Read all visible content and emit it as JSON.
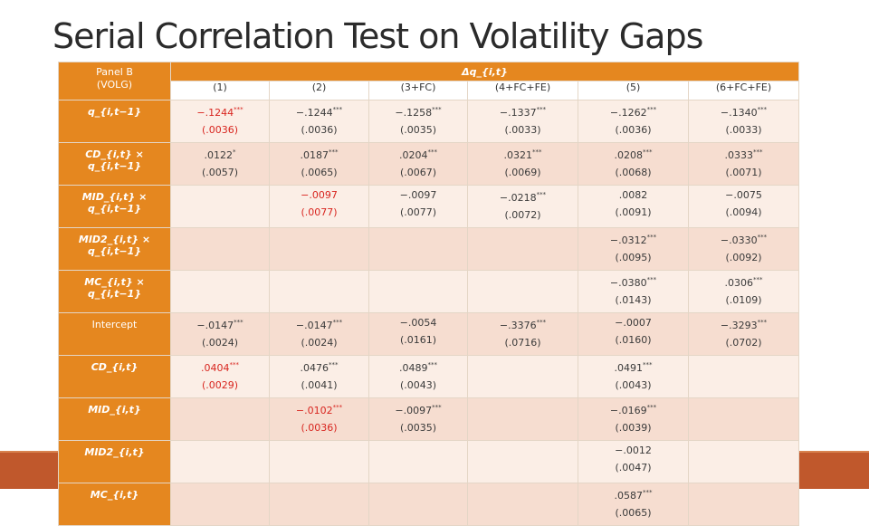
{
  "title": "Serial Correlation Test on Volatility Gaps",
  "panel_label_line1": "Panel B",
  "panel_label_line2": "(VOLG)",
  "dependent_variable": "Δq_{i,t}",
  "columns": [
    "(1)",
    "(2)",
    "(3+FC)",
    "(4+FC+FE)",
    "(5)",
    "(6+FC+FE)"
  ],
  "rows": [
    {
      "label": "q_{i,t−1}",
      "cells": [
        {
          "coef": "−.1244",
          "stars": "***",
          "se": "(.0036)",
          "red": true
        },
        {
          "coef": "−.1244",
          "stars": "***",
          "se": "(.0036)"
        },
        {
          "coef": "−.1258",
          "stars": "***",
          "se": "(.0035)"
        },
        {
          "coef": "−.1337",
          "stars": "***",
          "se": "(.0033)"
        },
        {
          "coef": "−.1262",
          "stars": "***",
          "se": "(.0036)"
        },
        {
          "coef": "−.1340",
          "stars": "***",
          "se": "(.0033)"
        }
      ]
    },
    {
      "label": "CD_{i,t} × q_{i,t−1}",
      "cells": [
        {
          "coef": ".0122",
          "stars": "*",
          "se": "(.0057)"
        },
        {
          "coef": ".0187",
          "stars": "***",
          "se": "(.0065)"
        },
        {
          "coef": ".0204",
          "stars": "***",
          "se": "(.0067)"
        },
        {
          "coef": ".0321",
          "stars": "***",
          "se": "(.0069)"
        },
        {
          "coef": ".0208",
          "stars": "***",
          "se": "(.0068)"
        },
        {
          "coef": ".0333",
          "stars": "***",
          "se": "(.0071)"
        }
      ]
    },
    {
      "label": "MID_{i,t} × q_{i,t−1}",
      "cells": [
        {
          "coef": "",
          "stars": "",
          "se": ""
        },
        {
          "coef": "−.0097",
          "stars": "",
          "se": "(.0077)",
          "red": true
        },
        {
          "coef": "−.0097",
          "stars": "",
          "se": "(.0077)"
        },
        {
          "coef": "−.0218",
          "stars": "***",
          "se": "(.0072)"
        },
        {
          "coef": ".0082",
          "stars": "",
          "se": "(.0091)"
        },
        {
          "coef": "−.0075",
          "stars": "",
          "se": "(.0094)"
        }
      ]
    },
    {
      "label": "MID2_{i,t} × q_{i,t−1}",
      "cells": [
        {
          "coef": "",
          "stars": "",
          "se": ""
        },
        {
          "coef": "",
          "stars": "",
          "se": ""
        },
        {
          "coef": "",
          "stars": "",
          "se": ""
        },
        {
          "coef": "",
          "stars": "",
          "se": ""
        },
        {
          "coef": "−.0312",
          "stars": "***",
          "se": "(.0095)"
        },
        {
          "coef": "−.0330",
          "stars": "***",
          "se": "(.0092)"
        }
      ]
    },
    {
      "label": "MC_{i,t} × q_{i,t−1}",
      "cells": [
        {
          "coef": "",
          "stars": "",
          "se": ""
        },
        {
          "coef": "",
          "stars": "",
          "se": ""
        },
        {
          "coef": "",
          "stars": "",
          "se": ""
        },
        {
          "coef": "",
          "stars": "",
          "se": ""
        },
        {
          "coef": "−.0380",
          "stars": "***",
          "se": "(.0143)"
        },
        {
          "coef": ".0306",
          "stars": "***",
          "se": "(.0109)"
        }
      ]
    },
    {
      "label": "Intercept",
      "plain": true,
      "cells": [
        {
          "coef": "−.0147",
          "stars": "***",
          "se": "(.0024)"
        },
        {
          "coef": "−.0147",
          "stars": "***",
          "se": "(.0024)"
        },
        {
          "coef": "−.0054",
          "stars": "",
          "se": "(.0161)"
        },
        {
          "coef": "−.3376",
          "stars": "***",
          "se": "(.0716)"
        },
        {
          "coef": "−.0007",
          "stars": "",
          "se": "(.0160)"
        },
        {
          "coef": "−.3293",
          "stars": "***",
          "se": "(.0702)"
        }
      ]
    },
    {
      "label": "CD_{i,t}",
      "cells": [
        {
          "coef": ".0404",
          "stars": "***",
          "se": "(.0029)",
          "red": true
        },
        {
          "coef": ".0476",
          "stars": "***",
          "se": "(.0041)"
        },
        {
          "coef": ".0489",
          "stars": "***",
          "se": "(.0043)"
        },
        {
          "coef": "",
          "stars": "",
          "se": ""
        },
        {
          "coef": ".0491",
          "stars": "***",
          "se": "(.0043)"
        },
        {
          "coef": "",
          "stars": "",
          "se": ""
        }
      ]
    },
    {
      "label": "MID_{i,t}",
      "cells": [
        {
          "coef": "",
          "stars": "",
          "se": ""
        },
        {
          "coef": "−.0102",
          "stars": "***",
          "se": "(.0036)",
          "red": true
        },
        {
          "coef": "−.0097",
          "stars": "***",
          "se": "(.0035)"
        },
        {
          "coef": "",
          "stars": "",
          "se": ""
        },
        {
          "coef": "−.0169",
          "stars": "***",
          "se": "(.0039)"
        },
        {
          "coef": "",
          "stars": "",
          "se": ""
        }
      ]
    },
    {
      "label": "MID2_{i,t}",
      "cells": [
        {
          "coef": "",
          "stars": "",
          "se": ""
        },
        {
          "coef": "",
          "stars": "",
          "se": ""
        },
        {
          "coef": "",
          "stars": "",
          "se": ""
        },
        {
          "coef": "",
          "stars": "",
          "se": ""
        },
        {
          "coef": "−.0012",
          "stars": "",
          "se": "(.0047)"
        },
        {
          "coef": "",
          "stars": "",
          "se": ""
        }
      ]
    },
    {
      "label": "MC_{i,t}",
      "cells": [
        {
          "coef": "",
          "stars": "",
          "se": ""
        },
        {
          "coef": "",
          "stars": "",
          "se": ""
        },
        {
          "coef": "",
          "stars": "",
          "se": ""
        },
        {
          "coef": "",
          "stars": "",
          "se": ""
        },
        {
          "coef": ".0587",
          "stars": "***",
          "se": "(.0065)"
        },
        {
          "coef": "",
          "stars": "",
          "se": ""
        }
      ]
    }
  ],
  "colors": {
    "header": "#e5871f",
    "band": "#c0582c",
    "row_light": "#fbeee6",
    "row_dark": "#f6ddd0",
    "highlight": "#d8251f"
  }
}
